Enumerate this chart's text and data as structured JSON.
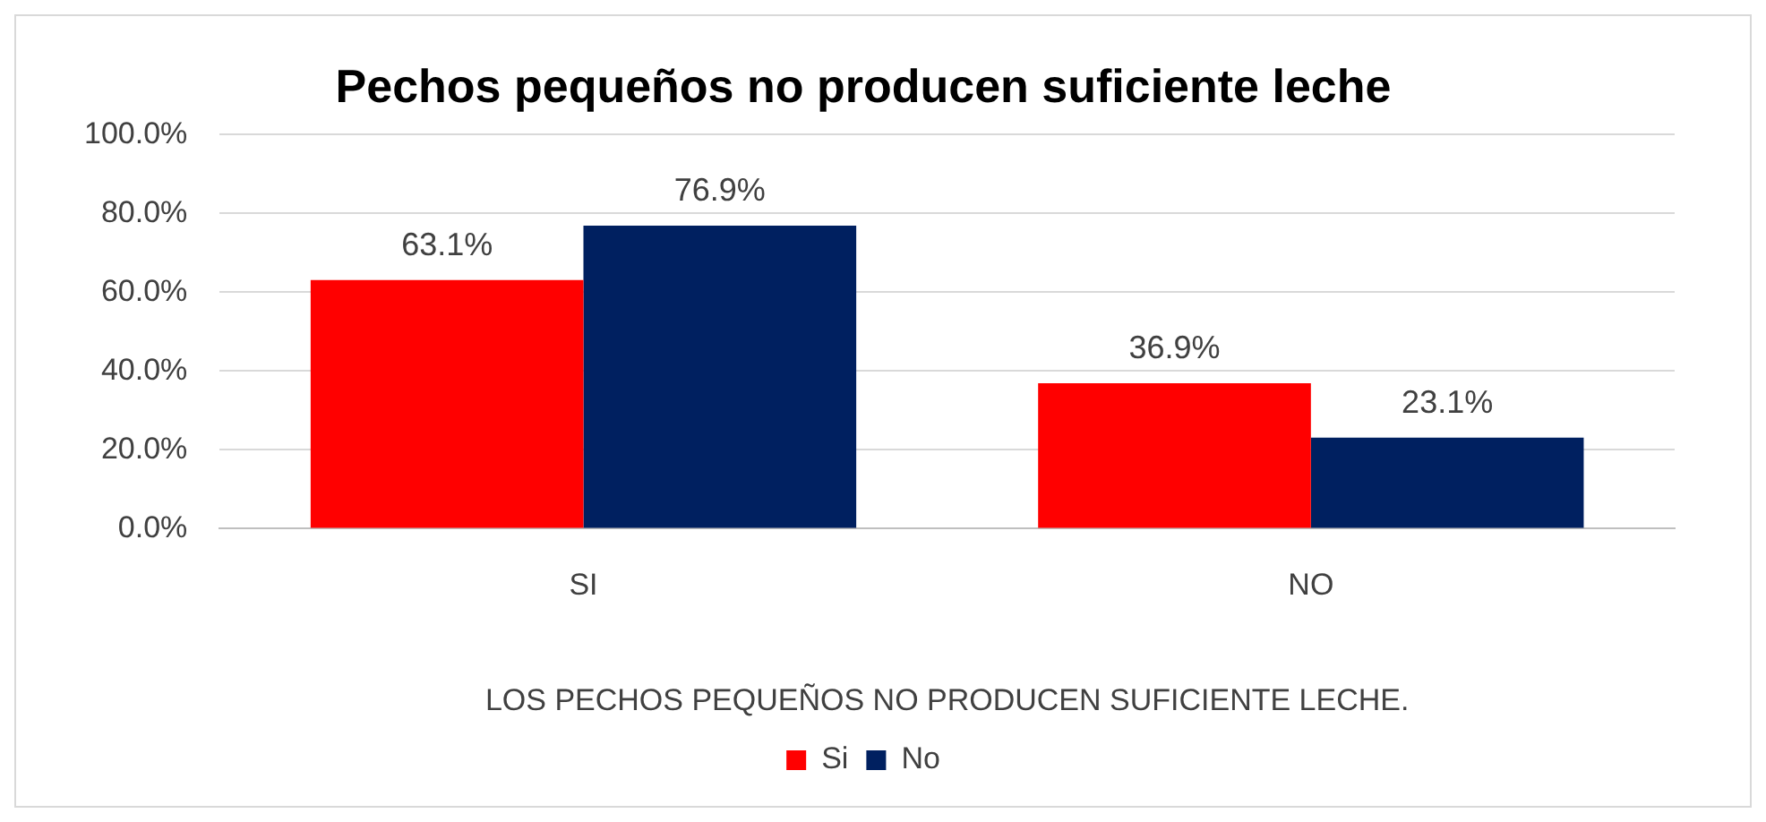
{
  "chart_data": {
    "type": "bar",
    "title": "Pechos pequeños no producen suficiente leche",
    "xlabel": "LOS PECHOS PEQUEÑOS NO PRODUCEN SUFICIENTE LECHE.",
    "categories": [
      "SI",
      "NO"
    ],
    "series": [
      {
        "name": "Si",
        "color": "#ff0000",
        "values": [
          63.1,
          36.9
        ],
        "value_labels": [
          "63.1%",
          "36.9%"
        ]
      },
      {
        "name": "No",
        "color": "#002060",
        "values": [
          76.9,
          23.1
        ],
        "value_labels": [
          "76.9%",
          "23.1%"
        ]
      }
    ],
    "ylim": [
      0,
      100
    ],
    "yticks": [
      {
        "value": 0,
        "label": "0.0%"
      },
      {
        "value": 20,
        "label": "20.0%"
      },
      {
        "value": 40,
        "label": "40.0%"
      },
      {
        "value": 60,
        "label": "60.0%"
      },
      {
        "value": 80,
        "label": "80.0%"
      },
      {
        "value": 100,
        "label": "100.0%"
      }
    ],
    "grid": "y",
    "legend": "bottom"
  }
}
